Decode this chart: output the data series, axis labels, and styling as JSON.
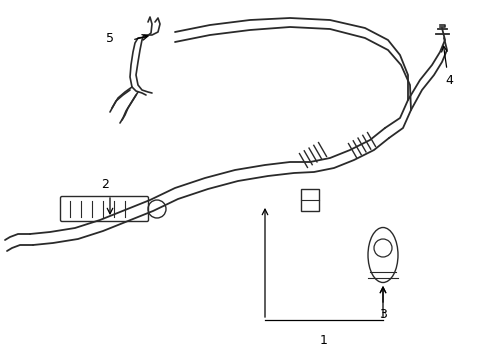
{
  "background_color": "#ffffff",
  "line_color": "#2a2a2a",
  "label_color": "#000000",
  "label_fontsize": 9,
  "arrow_color": "#000000",
  "figsize": [
    4.89,
    3.6
  ],
  "dpi": 100
}
